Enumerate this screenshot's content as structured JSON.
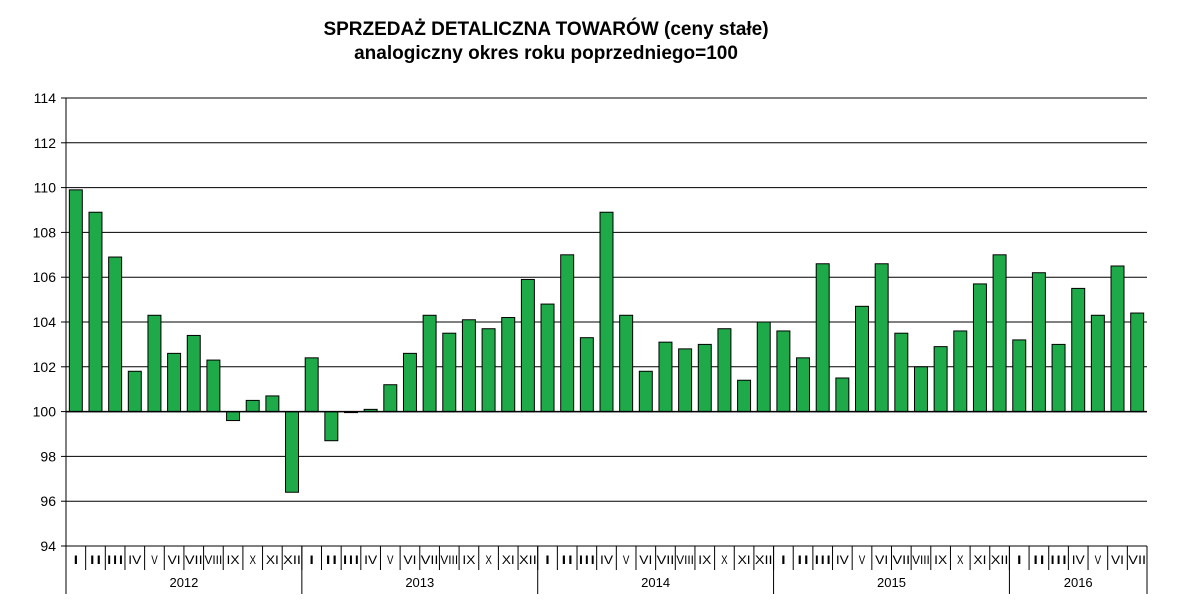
{
  "chart_data": {
    "type": "bar",
    "title": "SPRZEDAŻ DETALICZNA TOWARÓW  (ceny stałe)",
    "subtitle": "analogiczny okres roku poprzedniego=100",
    "xlabel": "",
    "ylabel": "",
    "ylim": [
      94,
      114
    ],
    "yticks": [
      94,
      96,
      98,
      100,
      102,
      104,
      106,
      108,
      110,
      112,
      114
    ],
    "baseline": 100,
    "grid": true,
    "legend": "none",
    "bar_color": "#1faa4a",
    "bar_edge_color": "#000000",
    "categories": [
      "I",
      "II",
      "III",
      "IV",
      "V",
      "VI",
      "VII",
      "VIII",
      "IX",
      "X",
      "XI",
      "XII",
      "I",
      "II",
      "III",
      "IV",
      "V",
      "VI",
      "VII",
      "VIII",
      "IX",
      "X",
      "XI",
      "XII",
      "I",
      "II",
      "III",
      "IV",
      "V",
      "VI",
      "VII",
      "VIII",
      "IX",
      "X",
      "XI",
      "XII",
      "I",
      "II",
      "III",
      "IV",
      "V",
      "VI",
      "VII",
      "VIII",
      "IX",
      "X",
      "XI",
      "XII",
      "I",
      "II",
      "III",
      "IV",
      "V",
      "VI",
      "VII"
    ],
    "years": [
      {
        "label": "2012",
        "months": 12
      },
      {
        "label": "2013",
        "months": 12
      },
      {
        "label": "2014",
        "months": 12
      },
      {
        "label": "2015",
        "months": 12
      },
      {
        "label": "2016",
        "months": 7
      }
    ],
    "values": [
      109.9,
      108.9,
      106.9,
      101.8,
      104.3,
      102.6,
      103.4,
      102.3,
      99.6,
      100.5,
      100.7,
      96.4,
      102.4,
      98.7,
      100.0,
      100.1,
      101.2,
      102.6,
      104.3,
      103.5,
      104.1,
      103.7,
      104.2,
      105.9,
      104.8,
      107.0,
      103.3,
      108.9,
      104.3,
      101.8,
      103.1,
      102.8,
      103.0,
      103.7,
      101.4,
      104.0,
      103.6,
      102.4,
      106.6,
      101.5,
      104.7,
      106.6,
      103.5,
      102.0,
      102.9,
      103.6,
      105.7,
      107.0,
      103.2,
      106.2,
      103.0,
      105.5,
      104.3,
      106.5,
      104.4
    ]
  }
}
